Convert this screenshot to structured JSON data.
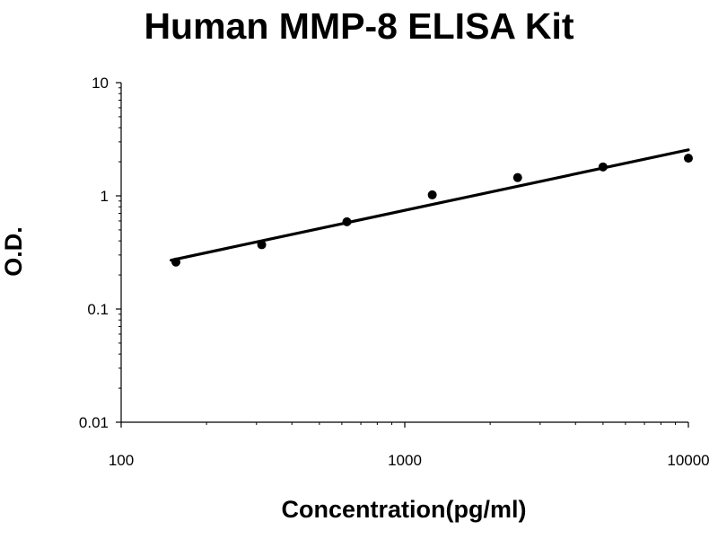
{
  "chart_data": {
    "type": "scatter",
    "title": "Human MMP-8 ELISA Kit",
    "xlabel": "Concentration(pg/ml)",
    "ylabel": "O.D.",
    "x_scale": "log",
    "y_scale": "log",
    "xlim": [
      100,
      10000
    ],
    "ylim": [
      0.01,
      10
    ],
    "x_ticks": [
      "100",
      "1000",
      "10000"
    ],
    "y_ticks": [
      "0.01",
      "0.1",
      "1",
      "10"
    ],
    "grid": false,
    "legend": "none",
    "series": [
      {
        "points": [
          {
            "x": 156,
            "y": 0.26
          },
          {
            "x": 313,
            "y": 0.37
          },
          {
            "x": 625,
            "y": 0.59
          },
          {
            "x": 1250,
            "y": 1.02
          },
          {
            "x": 2500,
            "y": 1.45
          },
          {
            "x": 5000,
            "y": 1.8
          },
          {
            "x": 10000,
            "y": 2.15
          }
        ],
        "color": "#000000"
      }
    ],
    "trendline": {
      "type": "power",
      "from": {
        "x": 150,
        "y": 0.27
      },
      "to": {
        "x": 10000,
        "y": 2.55
      },
      "color": "#000000"
    }
  }
}
